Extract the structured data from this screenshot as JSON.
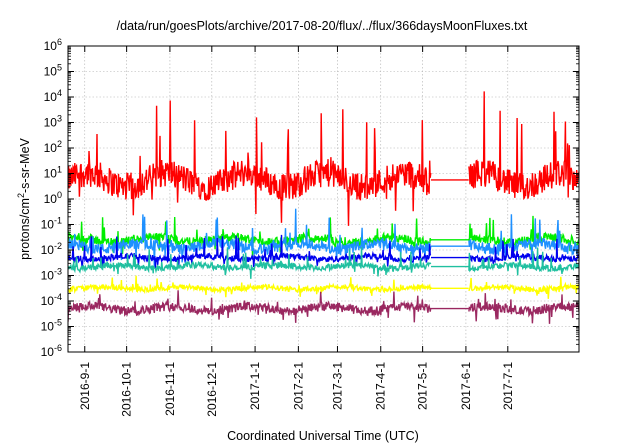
{
  "chart_data": {
    "type": "line",
    "title": "/data/run/goesPlots/archive/2017-08-20/flux/../flux/366daysMoonFluxes.txt",
    "xlabel": "Coordinated Universal Time (UTC)",
    "ylabel_parts": [
      "protons/cm",
      "2",
      "-s-sr-MeV"
    ],
    "x_range": [
      "2016-08-20",
      "2017-08-21"
    ],
    "x_ticks": [
      "2016-9-1",
      "2016-10-1",
      "2016-11-1",
      "2016-12-1",
      "2017-1-1",
      "2017-2-1",
      "2017-3-1",
      "2017-4-1",
      "2017-5-1",
      "2017-6-1",
      "2017-7-1"
    ],
    "y_scale": "log",
    "y_range": [
      1e-06,
      1000000.0
    ],
    "y_tick_exponents": [
      -6,
      -5,
      -4,
      -3,
      -2,
      -1,
      0,
      1,
      2,
      3,
      4,
      5,
      6
    ],
    "y_tick_base": "10",
    "grid": true,
    "data_gap": {
      "start": "2017-05-07",
      "end": "2017-06-03"
    },
    "series": [
      {
        "color": "#ff0000",
        "log_mean": 0.75,
        "log_jitter": 0.55,
        "log_spike": 2.9
      },
      {
        "color": "#00ee00",
        "log_mean": -1.6,
        "log_jitter": 0.18,
        "log_spike": 1.1
      },
      {
        "color": "#1e90ff",
        "log_mean": -1.85,
        "log_jitter": 0.22,
        "log_spike": 1.2
      },
      {
        "color": "#0000ee",
        "log_mean": -2.3,
        "log_jitter": 0.12,
        "log_spike": 0.9
      },
      {
        "color": "#20c0a0",
        "log_mean": -2.65,
        "log_jitter": 0.12,
        "log_spike": 0.7
      },
      {
        "color": "#ffff00",
        "log_mean": -3.5,
        "log_jitter": 0.1,
        "log_spike": 0.5
      },
      {
        "color": "#9a2860",
        "log_mean": -4.3,
        "log_jitter": 0.18,
        "log_spike": 0.5
      }
    ]
  }
}
